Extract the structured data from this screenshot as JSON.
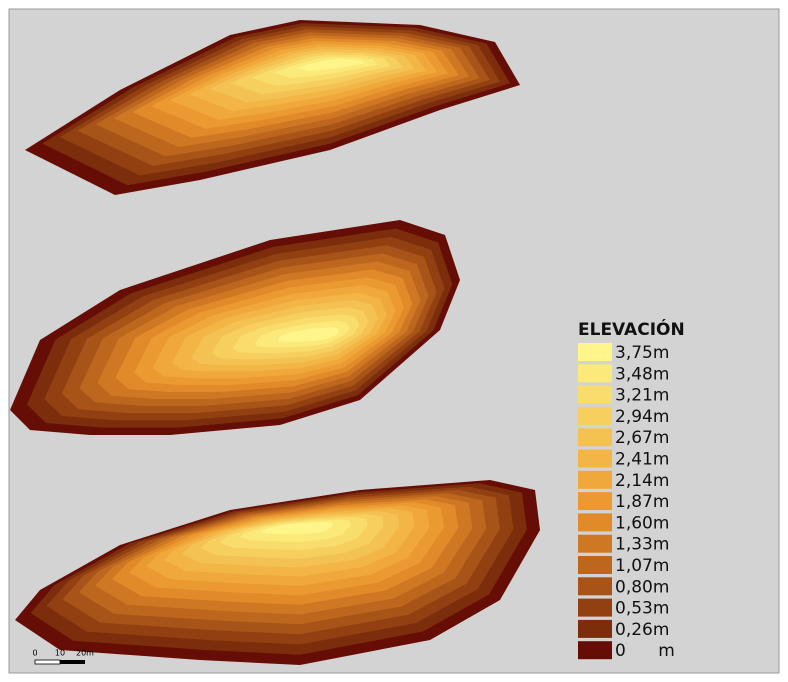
{
  "legend": {
    "title": "ELEVACIÓN",
    "items": [
      {
        "label": "3,75m",
        "color": "#fff58a"
      },
      {
        "label": "3,48m",
        "color": "#fbe97a"
      },
      {
        "label": "3,21m",
        "color": "#f8dc6c"
      },
      {
        "label": "2,94m",
        "color": "#f6cf5e"
      },
      {
        "label": "2,67m",
        "color": "#f4c253"
      },
      {
        "label": "2,41m",
        "color": "#f2b546"
      },
      {
        "label": "2,14m",
        "color": "#f0a83b"
      },
      {
        "label": "1,87m",
        "color": "#eb9a32"
      },
      {
        "label": "1,60m",
        "color": "#e08a2a"
      },
      {
        "label": "1,33m",
        "color": "#cf7824"
      },
      {
        "label": "1,07m",
        "color": "#bc661e"
      },
      {
        "label": "0,80m",
        "color": "#a85318"
      },
      {
        "label": "0,53m",
        "color": "#924012"
      },
      {
        "label": "0,26m",
        "color": "#7c2e0c"
      },
      {
        "label": "0      m",
        "color": "#660d06"
      }
    ]
  },
  "scale_bar": {
    "labels": [
      "0",
      "10",
      "20m"
    ]
  }
}
